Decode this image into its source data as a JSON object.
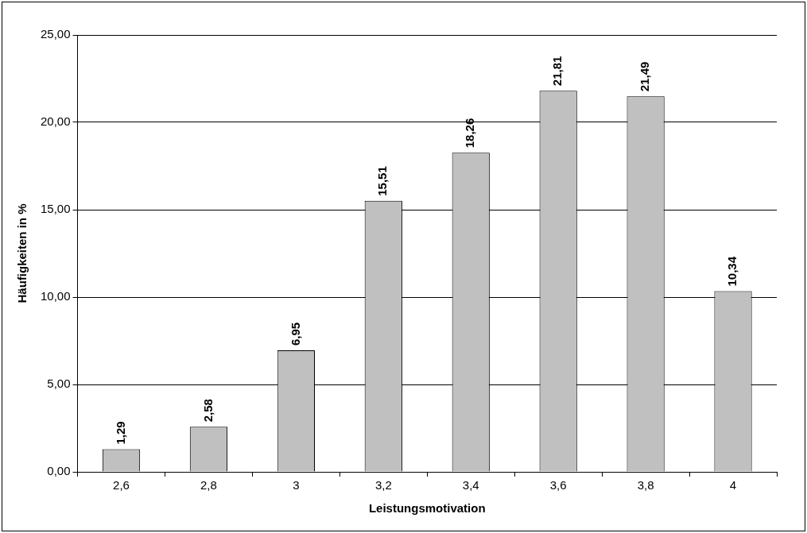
{
  "chart_data": {
    "type": "bar",
    "xlabel": "Leistungsmotivation",
    "ylabel": "Häufigkeiten in %",
    "categories": [
      "2,6",
      "2,8",
      "3",
      "3,2",
      "3,4",
      "3,6",
      "3,8",
      "4"
    ],
    "values": [
      1.29,
      2.58,
      6.95,
      15.51,
      18.26,
      21.81,
      21.49,
      10.34
    ],
    "value_labels": [
      "1,29",
      "2,58",
      "6,95",
      "15,51",
      "18,26",
      "21,81",
      "21,49",
      "10,34"
    ],
    "color": "#c0c0c0",
    "ylim": [
      0,
      25
    ],
    "yticks": [
      {
        "value": 0,
        "label": "0,00"
      },
      {
        "value": 5,
        "label": "5,00"
      },
      {
        "value": 10,
        "label": "10,00"
      },
      {
        "value": 15,
        "label": "15,00"
      },
      {
        "value": 20,
        "label": "20,00"
      },
      {
        "value": 25,
        "label": "25,00"
      }
    ],
    "grid": "y"
  }
}
